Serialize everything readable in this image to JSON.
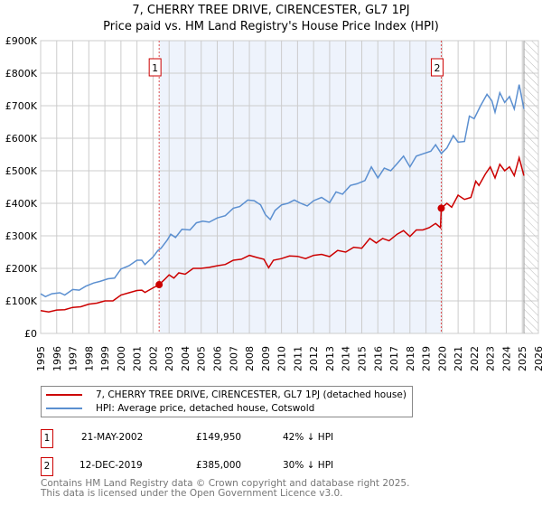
{
  "chart_data": {
    "type": "line",
    "title": "7, CHERRY TREE DRIVE, CIRENCESTER, GL7 1PJ",
    "subtitle": "Price paid vs. HM Land Registry's House Price Index (HPI)",
    "xlim": [
      1995,
      2026
    ],
    "ylim": [
      0,
      900000
    ],
    "y_ticks": [
      {
        "v": 0,
        "label": "£0"
      },
      {
        "v": 100000,
        "label": "£100K"
      },
      {
        "v": 200000,
        "label": "£200K"
      },
      {
        "v": 300000,
        "label": "£300K"
      },
      {
        "v": 400000,
        "label": "£400K"
      },
      {
        "v": 500000,
        "label": "£500K"
      },
      {
        "v": 600000,
        "label": "£600K"
      },
      {
        "v": 700000,
        "label": "£700K"
      },
      {
        "v": 800000,
        "label": "£800K"
      },
      {
        "v": 900000,
        "label": "£900K"
      }
    ],
    "x_ticks": [
      1995,
      1996,
      1997,
      1998,
      1999,
      2000,
      2001,
      2002,
      2003,
      2004,
      2005,
      2006,
      2007,
      2008,
      2009,
      2010,
      2011,
      2012,
      2013,
      2014,
      2015,
      2016,
      2017,
      2018,
      2019,
      2020,
      2021,
      2022,
      2023,
      2024,
      2025,
      2026
    ],
    "grid": true,
    "shaded_period": [
      2002.38,
      2019.95
    ],
    "forecast_hatch_from": 2025.1,
    "series": [
      {
        "name": "7, CHERRY TREE DRIVE, CIRENCESTER, GL7 1PJ (detached house)",
        "color": "#cc0000",
        "points": [
          [
            1995,
            70
          ],
          [
            1995.5,
            66
          ],
          [
            1996,
            72
          ],
          [
            1996.5,
            73
          ],
          [
            1997,
            80
          ],
          [
            1997.5,
            82
          ],
          [
            1998,
            90
          ],
          [
            1998.5,
            93
          ],
          [
            1999,
            100
          ],
          [
            1999.5,
            100
          ],
          [
            2000,
            118
          ],
          [
            2000.5,
            125
          ],
          [
            2001,
            132
          ],
          [
            2001.3,
            133
          ],
          [
            2001.5,
            126
          ],
          [
            2002,
            140
          ],
          [
            2002.38,
            149.95
          ],
          [
            2002.7,
            165
          ],
          [
            2003,
            180
          ],
          [
            2003.3,
            170
          ],
          [
            2003.6,
            186
          ],
          [
            2004,
            182
          ],
          [
            2004.5,
            200
          ],
          [
            2005,
            200
          ],
          [
            2005.5,
            203
          ],
          [
            2006,
            208
          ],
          [
            2006.5,
            212
          ],
          [
            2007,
            225
          ],
          [
            2007.5,
            228
          ],
          [
            2008,
            240
          ],
          [
            2008.5,
            233
          ],
          [
            2008.9,
            228
          ],
          [
            2009.2,
            202
          ],
          [
            2009.5,
            225
          ],
          [
            2010,
            230
          ],
          [
            2010.5,
            238
          ],
          [
            2011,
            237
          ],
          [
            2011.5,
            230
          ],
          [
            2012,
            240
          ],
          [
            2012.5,
            243
          ],
          [
            2013,
            236
          ],
          [
            2013.5,
            255
          ],
          [
            2014,
            250
          ],
          [
            2014.5,
            265
          ],
          [
            2015,
            262
          ],
          [
            2015.5,
            292
          ],
          [
            2015.9,
            278
          ],
          [
            2016.3,
            292
          ],
          [
            2016.7,
            285
          ],
          [
            2017.2,
            305
          ],
          [
            2017.6,
            316
          ],
          [
            2018,
            298
          ],
          [
            2018.4,
            318
          ],
          [
            2018.8,
            318
          ],
          [
            2019.2,
            325
          ],
          [
            2019.6,
            338
          ],
          [
            2019.9,
            325
          ],
          [
            2019.95,
            385
          ],
          [
            2020.3,
            400
          ],
          [
            2020.6,
            388
          ],
          [
            2021,
            425
          ],
          [
            2021.4,
            412
          ],
          [
            2021.8,
            418
          ],
          [
            2022.1,
            468
          ],
          [
            2022.3,
            455
          ],
          [
            2022.7,
            490
          ],
          [
            2023,
            512
          ],
          [
            2023.3,
            478
          ],
          [
            2023.6,
            520
          ],
          [
            2023.9,
            500
          ],
          [
            2024.2,
            512
          ],
          [
            2024.5,
            485
          ],
          [
            2024.8,
            540
          ],
          [
            2025.1,
            485
          ]
        ]
      },
      {
        "name": "HPI: Average price, detached house, Cotswold",
        "color": "#5b8fd0",
        "points": [
          [
            1995,
            122
          ],
          [
            1995.3,
            113
          ],
          [
            1995.7,
            122
          ],
          [
            1996.2,
            125
          ],
          [
            1996.5,
            118
          ],
          [
            1997,
            135
          ],
          [
            1997.4,
            133
          ],
          [
            1997.8,
            145
          ],
          [
            1998.3,
            155
          ],
          [
            1998.7,
            160
          ],
          [
            1999.2,
            168
          ],
          [
            1999.6,
            170
          ],
          [
            2000,
            198
          ],
          [
            2000.5,
            208
          ],
          [
            2001,
            225
          ],
          [
            2001.3,
            225
          ],
          [
            2001.5,
            212
          ],
          [
            2002,
            235
          ],
          [
            2002.3,
            255
          ],
          [
            2002.5,
            262
          ],
          [
            2002.9,
            288
          ],
          [
            2003.1,
            305
          ],
          [
            2003.4,
            295
          ],
          [
            2003.8,
            320
          ],
          [
            2004.3,
            318
          ],
          [
            2004.7,
            340
          ],
          [
            2005.1,
            345
          ],
          [
            2005.5,
            342
          ],
          [
            2006,
            355
          ],
          [
            2006.5,
            362
          ],
          [
            2007,
            385
          ],
          [
            2007.4,
            390
          ],
          [
            2007.9,
            410
          ],
          [
            2008.3,
            408
          ],
          [
            2008.7,
            395
          ],
          [
            2009,
            365
          ],
          [
            2009.3,
            350
          ],
          [
            2009.6,
            378
          ],
          [
            2010,
            395
          ],
          [
            2010.4,
            400
          ],
          [
            2010.8,
            410
          ],
          [
            2011.2,
            400
          ],
          [
            2011.6,
            392
          ],
          [
            2012,
            408
          ],
          [
            2012.5,
            418
          ],
          [
            2013,
            402
          ],
          [
            2013.4,
            435
          ],
          [
            2013.8,
            428
          ],
          [
            2014.3,
            455
          ],
          [
            2014.7,
            460
          ],
          [
            2015.2,
            470
          ],
          [
            2015.6,
            512
          ],
          [
            2016,
            478
          ],
          [
            2016.4,
            508
          ],
          [
            2016.8,
            500
          ],
          [
            2017.2,
            522
          ],
          [
            2017.6,
            545
          ],
          [
            2018,
            512
          ],
          [
            2018.4,
            545
          ],
          [
            2018.8,
            552
          ],
          [
            2019.3,
            560
          ],
          [
            2019.6,
            580
          ],
          [
            2019.95,
            553
          ],
          [
            2020.3,
            570
          ],
          [
            2020.7,
            608
          ],
          [
            2021,
            588
          ],
          [
            2021.4,
            590
          ],
          [
            2021.7,
            668
          ],
          [
            2022,
            660
          ],
          [
            2022.4,
            700
          ],
          [
            2022.8,
            735
          ],
          [
            2023.1,
            715
          ],
          [
            2023.3,
            680
          ],
          [
            2023.6,
            740
          ],
          [
            2023.9,
            710
          ],
          [
            2024.2,
            728
          ],
          [
            2024.5,
            690
          ],
          [
            2024.8,
            765
          ],
          [
            2025.1,
            690
          ]
        ]
      }
    ],
    "annotations": [
      {
        "label": "1",
        "x": 2002.38,
        "y": 149950
      },
      {
        "label": "2",
        "x": 2019.95,
        "y": 385000
      }
    ]
  },
  "legend": {
    "property": "7, CHERRY TREE DRIVE, CIRENCESTER, GL7 1PJ (detached house)",
    "hpi": "HPI: Average price, detached house, Cotswold"
  },
  "sales": [
    {
      "num": "1",
      "date": "21-MAY-2002",
      "price": "£149,950",
      "delta": "42% ↓ HPI"
    },
    {
      "num": "2",
      "date": "12-DEC-2019",
      "price": "£385,000",
      "delta": "30% ↓ HPI"
    }
  ],
  "footer": {
    "line1": "Contains HM Land Registry data © Crown copyright and database right 2025.",
    "line2": "This data is licensed under the Open Government Licence v3.0."
  }
}
